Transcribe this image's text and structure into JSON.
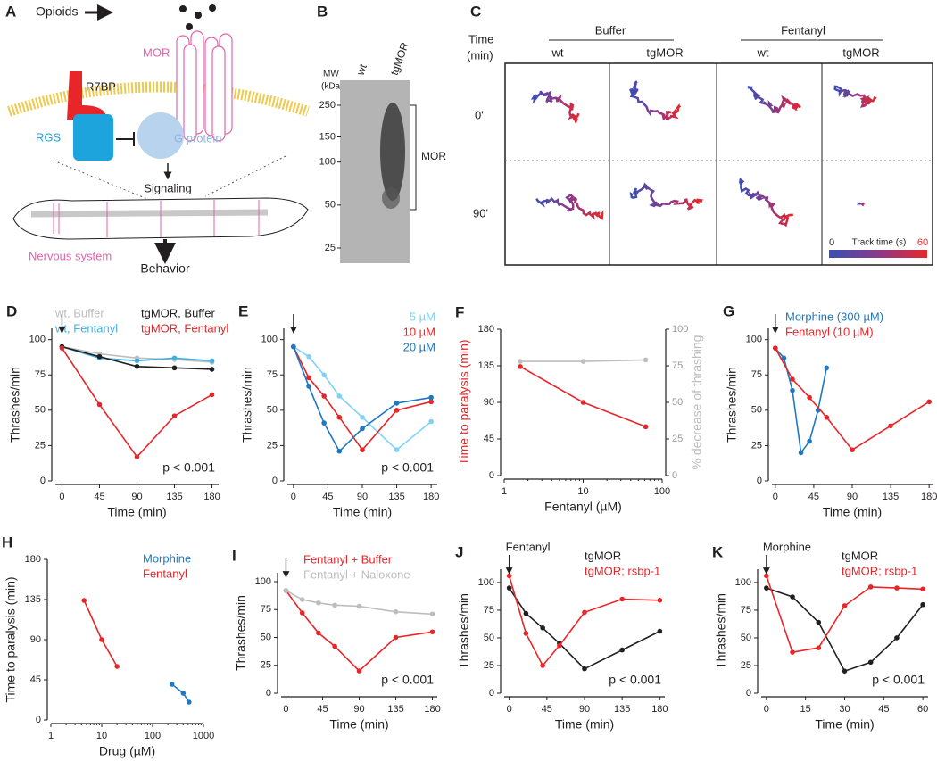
{
  "panels": {
    "A": {
      "letter": "A",
      "opioids": "Opioids",
      "mor": "MOR",
      "r7bp": "R7BP",
      "rgs": "RGS",
      "g_protein": "G protein",
      "signaling": "Signaling",
      "nervous_system": "Nervous system",
      "behavior": "Behavior"
    },
    "B": {
      "letter": "B",
      "mw_label": [
        "MW",
        "(kDa)"
      ],
      "lanes": [
        "wt",
        "tgMOR"
      ],
      "markers": [
        250,
        150,
        100,
        50,
        25
      ],
      "band_label": "MOR"
    },
    "C": {
      "letter": "C",
      "time_label": [
        "Time",
        "(min)"
      ],
      "groups": [
        "Buffer",
        "Fentanyl"
      ],
      "columns": [
        "wt",
        "tgMOR",
        "wt",
        "tgMOR"
      ],
      "rows": [
        "0'",
        "90'"
      ],
      "colorbar": {
        "min": 0,
        "label": "Track time (s)",
        "max": 60
      }
    }
  },
  "chart_data": [
    {
      "panel": "D",
      "type": "line",
      "xlabel": "Time (min)",
      "ylabel": "Thrashes/min",
      "x": [
        0,
        45,
        90,
        135,
        180
      ],
      "xlim": [
        -8,
        188
      ],
      "xticks": [
        0,
        45,
        90,
        135,
        180
      ],
      "ylim": [
        0,
        108
      ],
      "yticks": [
        0,
        25,
        50,
        75,
        100
      ],
      "annotation": "p < 0.001",
      "drug_added_at": 0,
      "series": [
        {
          "name": "wt, Buffer",
          "color": "#bdbdbd",
          "values": [
            95,
            90,
            87,
            86,
            84
          ]
        },
        {
          "name": "wt, Fentanyl",
          "color": "#3fb1e3",
          "values": [
            95,
            87,
            85,
            87,
            85
          ]
        },
        {
          "name": "tgMOR, Buffer",
          "color": "#231f20",
          "values": [
            95,
            88,
            81,
            80,
            79
          ]
        },
        {
          "name": "tgMOR, Fentanyl",
          "color": "#e8262a",
          "values": [
            94,
            54,
            17,
            46,
            61
          ]
        }
      ]
    },
    {
      "panel": "E",
      "type": "line",
      "xlabel": "Time (min)",
      "ylabel": "Thrashes/min",
      "x": [
        0,
        20,
        40,
        60,
        90,
        135,
        180
      ],
      "xlim": [
        -8,
        188
      ],
      "xticks": [
        0,
        45,
        90,
        135,
        180
      ],
      "ylim": [
        0,
        108
      ],
      "yticks": [
        0,
        25,
        50,
        75,
        100
      ],
      "annotation": "p < 0.001",
      "drug_added_at": 0,
      "series": [
        {
          "name": "5 µM",
          "color": "#7fd2f4",
          "values": [
            95,
            88,
            75,
            60,
            45,
            22,
            42
          ]
        },
        {
          "name": "10 µM",
          "color": "#e8262a",
          "values": [
            95,
            73,
            60,
            45,
            22,
            50,
            56
          ]
        },
        {
          "name": "20 µM",
          "color": "#1f78c1",
          "values": [
            95,
            67,
            41,
            21,
            37,
            55,
            59
          ]
        }
      ]
    },
    {
      "panel": "F",
      "type": "line",
      "xlabel": "Fentanyl (µM)",
      "ylabel": "Time to paralysis (min)",
      "y2label": "% decrease of thrashing",
      "xscale": "log",
      "x": [
        1.6,
        10,
        62
      ],
      "xlim": [
        1,
        100
      ],
      "xticks": [
        1,
        10,
        100
      ],
      "ylim": [
        0,
        180
      ],
      "yticks": [
        0,
        45,
        90,
        135,
        180
      ],
      "y2lim": [
        0,
        100
      ],
      "y2ticks": [
        0,
        25,
        50,
        75,
        100
      ],
      "series": [
        {
          "name": "Time to paralysis",
          "color": "#e8262a",
          "values": [
            134,
            90,
            60
          ]
        },
        {
          "name": "% decrease of thrashing",
          "color": "#bdbdbd",
          "axis": "y2",
          "values": [
            78,
            78,
            79
          ]
        }
      ]
    },
    {
      "panel": "G",
      "type": "line",
      "xlabel": "Time (min)",
      "ylabel": "Thrashes/min",
      "xlim": [
        -4,
        184
      ],
      "xticks": [
        0,
        45,
        90,
        135,
        180
      ],
      "ylim": [
        0,
        108
      ],
      "yticks": [
        0,
        25,
        50,
        75,
        100
      ],
      "drug_added_at": 0,
      "series": [
        {
          "name": "Morphine (300 µM)",
          "color": "#1f78c1",
          "x": [
            0,
            10,
            20,
            30,
            40,
            50,
            60
          ],
          "values": [
            94,
            87,
            64,
            20,
            28,
            50,
            80
          ]
        },
        {
          "name": "Fentanyl (10 µM)",
          "color": "#e8262a",
          "x": [
            0,
            20,
            40,
            60,
            90,
            135,
            180
          ],
          "values": [
            94,
            72,
            59,
            45,
            22,
            39,
            56
          ]
        }
      ]
    },
    {
      "panel": "H",
      "type": "line",
      "xlabel": "Drug (µM)",
      "ylabel": "Time to paralysis (min)",
      "xscale": "log",
      "xlim": [
        1,
        1000
      ],
      "xticks": [
        1,
        10,
        100,
        1000
      ],
      "ylim": [
        0,
        180
      ],
      "yticks": [
        0,
        45,
        90,
        135,
        180
      ],
      "series": [
        {
          "name": "Morphine",
          "color": "#1f78c1",
          "x": [
            240,
            400,
            520
          ],
          "values": [
            40,
            30,
            20
          ]
        },
        {
          "name": "Fentanyl",
          "color": "#e8262a",
          "x": [
            4.5,
            10,
            20
          ],
          "values": [
            134,
            90,
            60
          ]
        }
      ]
    },
    {
      "panel": "I",
      "type": "line",
      "xlabel": "Time (min)",
      "ylabel": "Thrashes/min",
      "x": [
        0,
        20,
        40,
        60,
        90,
        135,
        180
      ],
      "xlim": [
        -6,
        186
      ],
      "xticks": [
        0,
        45,
        90,
        135,
        180
      ],
      "ylim": [
        0,
        108
      ],
      "yticks": [
        0,
        25,
        50,
        75,
        100
      ],
      "annotation": "p < 0.001",
      "drug_added_at": 0,
      "series": [
        {
          "name": "Fentanyl + Buffer",
          "color": "#e8262a",
          "values": [
            92,
            72,
            54,
            42,
            20,
            50,
            55
          ]
        },
        {
          "name": "Fentanyl + Naloxone",
          "color": "#bdbdbd",
          "values": [
            92,
            84,
            81,
            79,
            78,
            73,
            71
          ]
        }
      ]
    },
    {
      "panel": "J",
      "type": "line",
      "xlabel": "Time (min)",
      "ylabel": "Thrashes/min",
      "x": [
        0,
        20,
        40,
        60,
        90,
        135,
        180
      ],
      "xlim": [
        -6,
        186
      ],
      "xticks": [
        0,
        45,
        90,
        135,
        180
      ],
      "ylim": [
        0,
        112
      ],
      "yticks": [
        0,
        25,
        50,
        75,
        100
      ],
      "annotation": "p < 0.001",
      "drug_added_at": 0,
      "drug_label": "Fentanyl",
      "series": [
        {
          "name": "tgMOR",
          "color": "#231f20",
          "values": [
            95,
            72,
            59,
            45,
            22,
            39,
            56
          ]
        },
        {
          "name": "tgMOR; rsbp-1",
          "color": "#e8262a",
          "values": [
            106,
            54,
            25,
            43,
            73,
            85,
            84
          ]
        }
      ]
    },
    {
      "panel": "K",
      "type": "line",
      "xlabel": "Time (min)",
      "ylabel": "Thrashes/min",
      "x": [
        0,
        10,
        20,
        30,
        40,
        50,
        60
      ],
      "xlim": [
        -2,
        62
      ],
      "xticks": [
        0,
        15,
        30,
        45,
        60
      ],
      "ylim": [
        0,
        112
      ],
      "yticks": [
        0,
        25,
        50,
        75,
        100
      ],
      "annotation": "p < 0.001",
      "drug_added_at": 0,
      "drug_label": "Morphine",
      "series": [
        {
          "name": "tgMOR",
          "color": "#231f20",
          "values": [
            95,
            87,
            64,
            20,
            28,
            50,
            80
          ]
        },
        {
          "name": "tgMOR; rsbp-1",
          "color": "#e8262a",
          "values": [
            106,
            37,
            41,
            79,
            96,
            95,
            94
          ]
        }
      ]
    }
  ]
}
